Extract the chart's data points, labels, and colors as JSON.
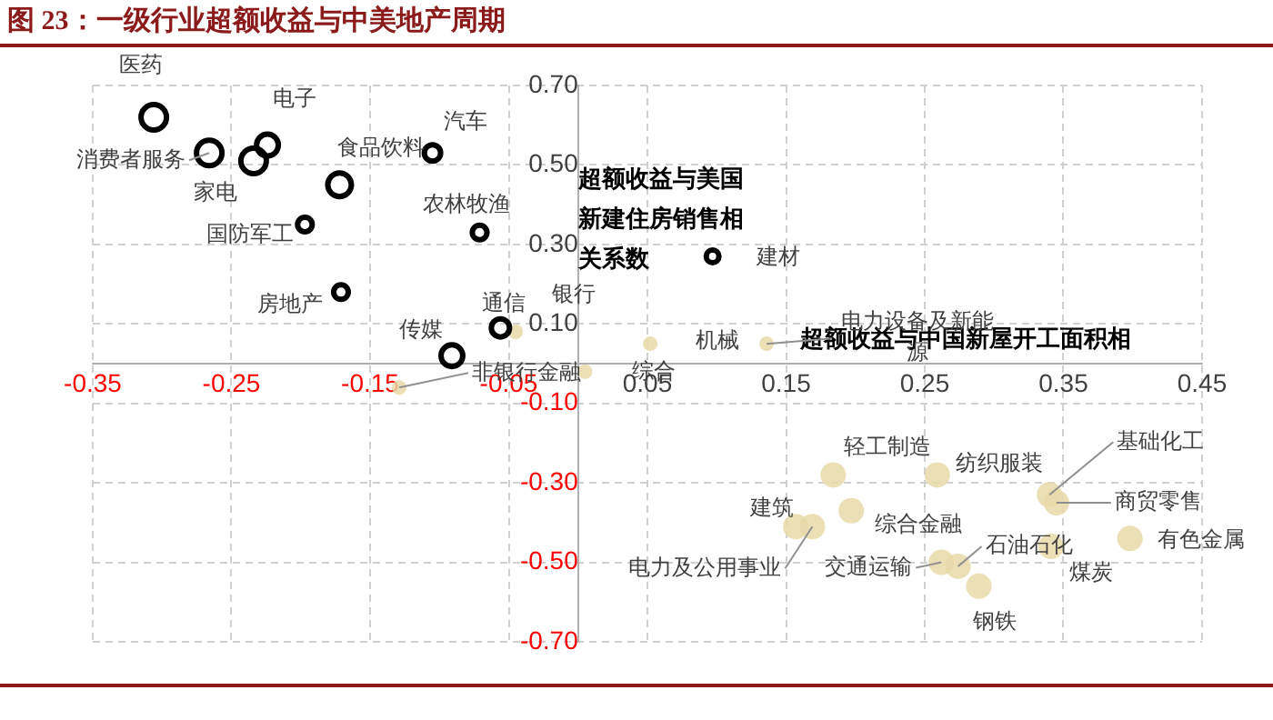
{
  "chart_data": {
    "type": "bubble",
    "title": "图 23：一级行业超额收益与中美地产周期",
    "xlim": [
      -0.35,
      0.45
    ],
    "xticks": [
      -0.35,
      -0.25,
      -0.15,
      -0.05,
      0.05,
      0.15,
      0.25,
      0.35,
      0.45
    ],
    "ylim": [
      -0.7,
      0.7
    ],
    "yticks": [
      {
        "value": 0.7,
        "label": "0.70"
      },
      {
        "value": 0.5,
        "label": "0.50"
      },
      {
        "value": 0.3,
        "label": "0.30"
      },
      {
        "value": 0.1,
        "label": "0.10"
      },
      {
        "value": -0.1,
        "label": "-0.10"
      },
      {
        "value": -0.3,
        "label": "-0.30"
      },
      {
        "value": -0.5,
        "label": "-0.50"
      },
      {
        "value": -0.7,
        "label": "-0.70"
      }
    ],
    "grid": true,
    "legend": false,
    "series": [
      {
        "name": "超额收益与美国新建住房销售相关系数",
        "color": "#000000",
        "x": [
          -0.306,
          -0.266,
          -0.224,
          -0.234,
          -0.172,
          -0.197,
          -0.105,
          -0.071,
          -0.171,
          -0.056,
          -0.091,
          0.097
        ],
        "values": [
          0.62,
          0.53,
          0.55,
          0.51,
          0.45,
          0.35,
          0.53,
          0.33,
          0.18,
          0.09,
          0.02,
          0.27
        ],
        "sizes": [
          1,
          1,
          0.73,
          1,
          0.86,
          0.33,
          0.41,
          0.33,
          0.33,
          0.51,
          0.73,
          0.25
        ]
      },
      {
        "name": "超额收益与中国新屋开工面积相",
        "color": "#e8d9a8",
        "x": [
          -0.045,
          -0.129,
          0.005,
          0.052,
          0.136,
          0.184,
          0.259,
          0.34,
          0.345,
          0.398,
          0.157,
          0.197,
          0.169,
          0.262,
          0.274,
          0.341,
          0.289
        ],
        "values": [
          0.08,
          -0.06,
          -0.02,
          0.05,
          0.05,
          -0.28,
          -0.28,
          -0.33,
          -0.35,
          -0.44,
          -0.41,
          -0.37,
          -0.41,
          -0.5,
          -0.51,
          -0.46,
          -0.56
        ],
        "sizes": [
          0.33,
          0.33,
          0.33,
          0.33,
          0.33,
          1,
          1,
          1,
          1,
          1,
          1,
          1,
          1,
          1,
          1,
          1,
          1
        ]
      }
    ],
    "annotations": [
      {
        "text": "医药",
        "x": -0.306,
        "y": 0.62
      },
      {
        "text": "消费者服务",
        "x": -0.266,
        "y": 0.53
      },
      {
        "text": "电子",
        "x": -0.224,
        "y": 0.55
      },
      {
        "text": "家电",
        "x": -0.234,
        "y": 0.51
      },
      {
        "text": "食品饮料",
        "x": -0.172,
        "y": 0.45
      },
      {
        "text": "国防军工",
        "x": -0.197,
        "y": 0.35
      },
      {
        "text": "汽车",
        "x": -0.105,
        "y": 0.53
      },
      {
        "text": "农林牧渔",
        "x": -0.071,
        "y": 0.33
      },
      {
        "text": "房地产",
        "x": -0.171,
        "y": 0.18
      },
      {
        "text": "通信",
        "x": -0.056,
        "y": 0.09
      },
      {
        "text": "传媒",
        "x": -0.091,
        "y": 0.02
      },
      {
        "text": "建材",
        "x": 0.097,
        "y": 0.27
      },
      {
        "text": "银行",
        "x": -0.045,
        "y": 0.08
      },
      {
        "text": "非银行金融",
        "x": -0.129,
        "y": -0.06
      },
      {
        "text": "综合",
        "x": 0.052,
        "y": 0.05
      },
      {
        "text": "机械",
        "x": 0.136,
        "y": 0.05
      },
      {
        "text": "电力设备及新能源",
        "x": 0.136,
        "y": 0.05
      },
      {
        "text": "轻工制造",
        "x": 0.184,
        "y": -0.28
      },
      {
        "text": "纺织服装",
        "x": 0.259,
        "y": -0.28
      },
      {
        "text": "基础化工",
        "x": 0.34,
        "y": -0.33
      },
      {
        "text": "商贸零售",
        "x": 0.345,
        "y": -0.35
      },
      {
        "text": "有色金属",
        "x": 0.398,
        "y": -0.44
      },
      {
        "text": "建筑",
        "x": 0.157,
        "y": -0.41
      },
      {
        "text": "综合金融",
        "x": 0.197,
        "y": -0.37
      },
      {
        "text": "电力及公用事业",
        "x": 0.169,
        "y": -0.41
      },
      {
        "text": "交通运输",
        "x": 0.262,
        "y": -0.5
      },
      {
        "text": "石油石化",
        "x": 0.274,
        "y": -0.51
      },
      {
        "text": "煤炭",
        "x": 0.341,
        "y": -0.46
      },
      {
        "text": "钢铁",
        "x": 0.289,
        "y": -0.56
      }
    ]
  }
}
